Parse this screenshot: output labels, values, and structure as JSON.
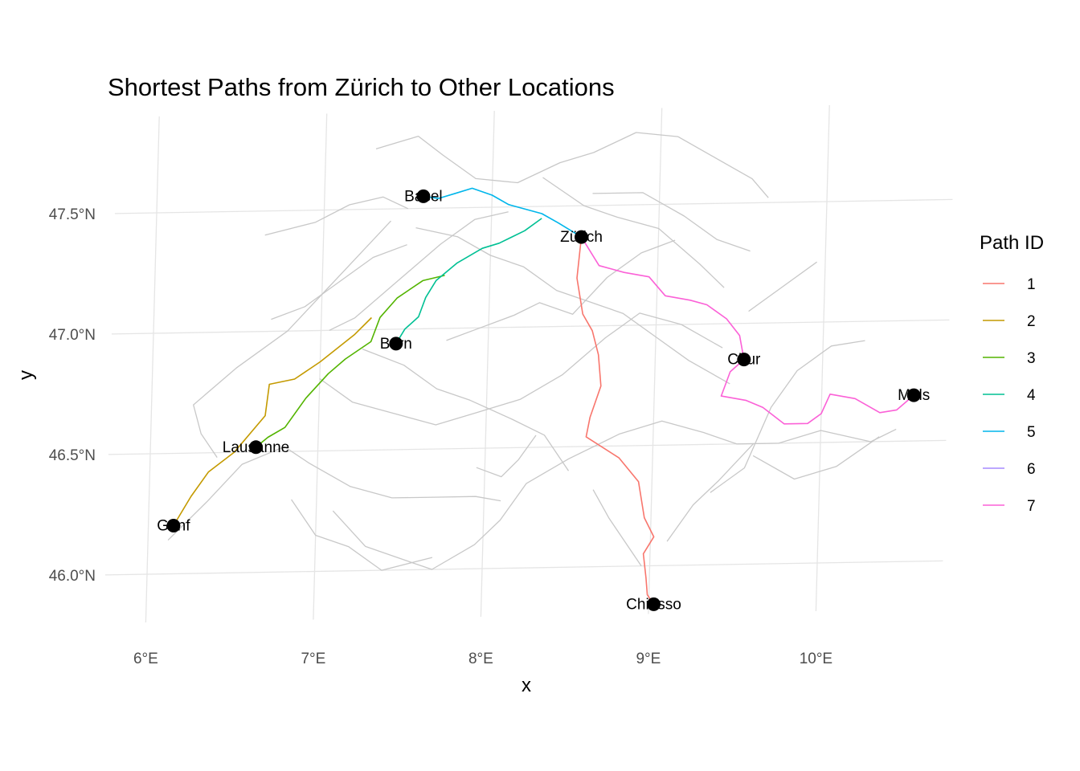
{
  "chart_data": {
    "type": "map",
    "title": "Shortest Paths from Zürich to Other Locations",
    "xlabel": "x",
    "ylabel": "y",
    "x_ticks": [
      "6°E",
      "7°E",
      "8°E",
      "9°E",
      "10°E"
    ],
    "y_ticks": [
      "47.5°N",
      "47.0°N",
      "46.5°N",
      "46.0°N"
    ],
    "legend": {
      "title": "Path ID",
      "placement": "right",
      "entries": [
        {
          "label": "1",
          "color": "#F8766D"
        },
        {
          "label": "2",
          "color": "#C49A00"
        },
        {
          "label": "3",
          "color": "#53B400"
        },
        {
          "label": "4",
          "color": "#00C094"
        },
        {
          "label": "5",
          "color": "#00B6EB"
        },
        {
          "label": "6",
          "color": "#A58AFF"
        },
        {
          "label": "7",
          "color": "#FB61D7"
        }
      ]
    },
    "locations": [
      {
        "name": "Zürich",
        "lon": 8.54,
        "lat": 47.37
      },
      {
        "name": "Basel",
        "lon": 7.59,
        "lat": 47.55
      },
      {
        "name": "Bern",
        "lon": 7.45,
        "lat": 46.94
      },
      {
        "name": "Lausanne",
        "lon": 6.63,
        "lat": 46.52
      },
      {
        "name": "Genf",
        "lon": 6.15,
        "lat": 46.2
      },
      {
        "name": "Chur",
        "lon": 9.53,
        "lat": 46.85
      },
      {
        "name": "Mals",
        "lon": 10.55,
        "lat": 46.69
      },
      {
        "name": "Chiasso",
        "lon": 9.03,
        "lat": 45.84
      }
    ],
    "paths": [
      {
        "id": "1",
        "to": "Chiasso",
        "coords": [
          [
            8.54,
            47.37
          ],
          [
            8.52,
            47.2
          ],
          [
            8.56,
            47.05
          ],
          [
            8.62,
            46.98
          ],
          [
            8.66,
            46.88
          ],
          [
            8.68,
            46.75
          ],
          [
            8.62,
            46.62
          ],
          [
            8.6,
            46.54
          ],
          [
            8.8,
            46.45
          ],
          [
            8.92,
            46.35
          ],
          [
            8.96,
            46.2
          ],
          [
            9.02,
            46.12
          ],
          [
            8.96,
            46.05
          ],
          [
            8.98,
            45.95
          ],
          [
            8.99,
            45.88
          ],
          [
            9.03,
            45.84
          ]
        ]
      },
      {
        "id": "2",
        "to": "Genf",
        "coords": [
          [
            7.3,
            47.05
          ],
          [
            7.2,
            46.98
          ],
          [
            7.0,
            46.87
          ],
          [
            6.85,
            46.8
          ],
          [
            6.7,
            46.78
          ],
          [
            6.68,
            46.65
          ],
          [
            6.5,
            46.5
          ],
          [
            6.35,
            46.42
          ],
          [
            6.25,
            46.32
          ],
          [
            6.15,
            46.2
          ]
        ]
      },
      {
        "id": "3",
        "to": "Lausanne",
        "coords": [
          [
            7.73,
            47.22
          ],
          [
            7.6,
            47.2
          ],
          [
            7.45,
            47.13
          ],
          [
            7.35,
            47.05
          ],
          [
            7.3,
            46.95
          ],
          [
            7.15,
            46.88
          ],
          [
            7.05,
            46.82
          ],
          [
            6.92,
            46.72
          ],
          [
            6.8,
            46.6
          ],
          [
            6.7,
            46.56
          ],
          [
            6.63,
            46.52
          ]
        ]
      },
      {
        "id": "4",
        "to": "Bern",
        "coords": [
          [
            8.3,
            47.45
          ],
          [
            8.2,
            47.4
          ],
          [
            8.05,
            47.35
          ],
          [
            7.95,
            47.33
          ],
          [
            7.8,
            47.27
          ],
          [
            7.68,
            47.2
          ],
          [
            7.62,
            47.13
          ],
          [
            7.58,
            47.05
          ],
          [
            7.5,
            47.0
          ],
          [
            7.45,
            46.94
          ]
        ]
      },
      {
        "id": "5",
        "to": "Basel",
        "coords": [
          [
            8.54,
            47.37
          ],
          [
            8.4,
            47.43
          ],
          [
            8.3,
            47.47
          ],
          [
            8.1,
            47.51
          ],
          [
            8.0,
            47.55
          ],
          [
            7.88,
            47.58
          ],
          [
            7.78,
            47.56
          ],
          [
            7.68,
            47.54
          ],
          [
            7.59,
            47.55
          ]
        ]
      },
      {
        "id": "7",
        "to": "Mals",
        "coords": [
          [
            8.54,
            47.37
          ],
          [
            8.65,
            47.25
          ],
          [
            8.8,
            47.22
          ],
          [
            8.95,
            47.2
          ],
          [
            9.05,
            47.12
          ],
          [
            9.2,
            47.1
          ],
          [
            9.3,
            47.08
          ],
          [
            9.42,
            47.02
          ],
          [
            9.5,
            46.95
          ],
          [
            9.53,
            46.85
          ],
          [
            9.45,
            46.8
          ],
          [
            9.4,
            46.7
          ],
          [
            9.55,
            46.68
          ],
          [
            9.65,
            46.65
          ],
          [
            9.78,
            46.58
          ],
          [
            9.92,
            46.58
          ],
          [
            10.0,
            46.62
          ],
          [
            10.05,
            46.7
          ],
          [
            10.2,
            46.68
          ],
          [
            10.35,
            46.62
          ],
          [
            10.45,
            46.63
          ],
          [
            10.55,
            46.69
          ]
        ]
      }
    ]
  }
}
